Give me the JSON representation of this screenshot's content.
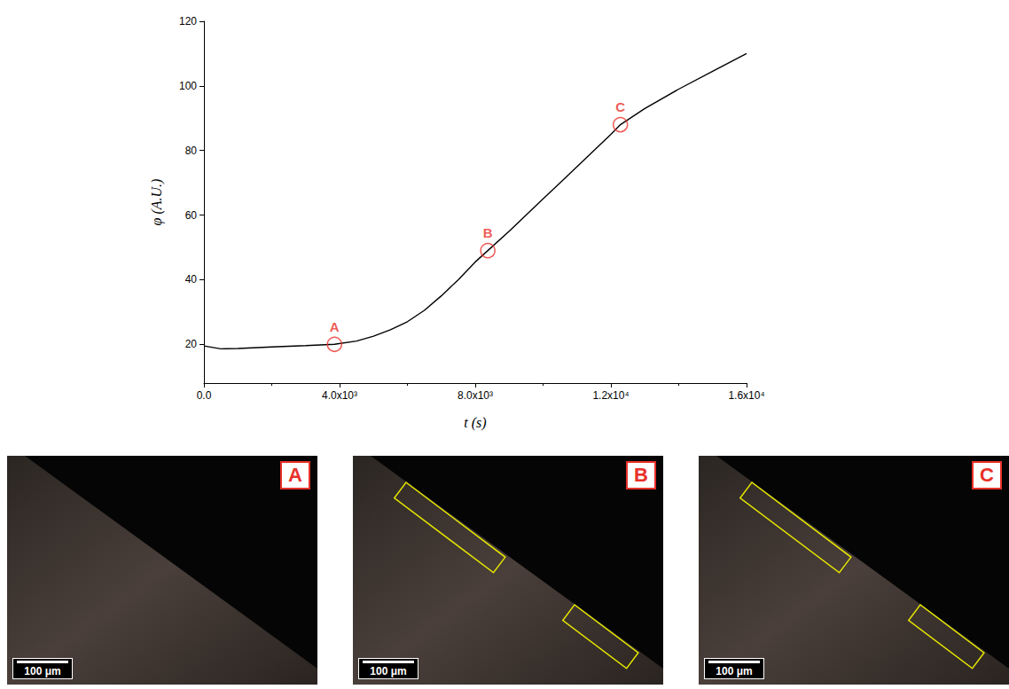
{
  "chart_data": {
    "type": "line",
    "xlabel": "t (s)",
    "ylabel": "φ (A.U.)",
    "xlim": [
      0,
      16000
    ],
    "xticks": [
      {
        "value": 0,
        "label": "0.0"
      },
      {
        "value": 4000,
        "label": "4.0x10³"
      },
      {
        "value": 8000,
        "label": "8.0x10³"
      },
      {
        "value": 12000,
        "label": "1.2x10⁴"
      },
      {
        "value": 16000,
        "label": "1.6x10⁴"
      }
    ],
    "ylim": [
      8,
      120
    ],
    "yticks": [
      20,
      40,
      60,
      80,
      100,
      120
    ],
    "grid": false,
    "color": "#000000",
    "x": [
      0,
      500,
      1000,
      2000,
      3000,
      3850,
      4500,
      5000,
      5500,
      6000,
      6500,
      7000,
      7500,
      8000,
      8370,
      9000,
      9500,
      10000,
      10500,
      11000,
      11500,
      12000,
      12280,
      13000,
      14000,
      15000,
      16000
    ],
    "values": [
      19.5,
      18.6,
      18.7,
      19.2,
      19.6,
      20,
      21,
      22.5,
      24.5,
      27,
      30.5,
      35,
      40,
      45.5,
      49,
      55,
      60,
      65,
      70,
      75,
      80,
      85,
      88,
      93,
      99,
      104.5,
      110
    ],
    "annotations": [
      {
        "label": "A",
        "x": 3850,
        "y": 20,
        "color": "#e8302a"
      },
      {
        "label": "B",
        "x": 8370,
        "y": 49,
        "color": "#e8302a"
      },
      {
        "label": "C",
        "x": 12280,
        "y": 88,
        "color": "#e8302a"
      }
    ]
  },
  "panels": [
    {
      "label": "A",
      "scale_bar": "100 μm"
    },
    {
      "label": "B",
      "scale_bar": "100 μm"
    },
    {
      "label": "C",
      "scale_bar": "100 μm"
    }
  ]
}
